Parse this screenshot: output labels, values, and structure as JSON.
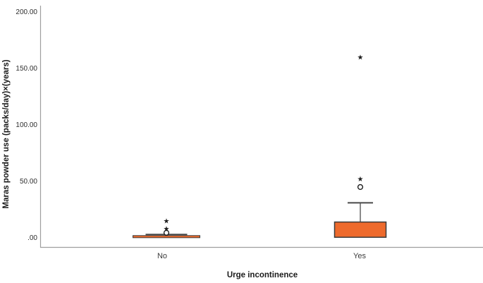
{
  "chart_data": {
    "type": "boxplot",
    "title": "",
    "xlabel": "Urge incontinence",
    "ylabel": "Maras powder use (packs/day)×(years)",
    "ylim": [
      0,
      210
    ],
    "grid": false,
    "legend": "none",
    "ytick_values": [
      0,
      50,
      100,
      150,
      200
    ],
    "ytick_labels": [
      ".00",
      "50.00",
      "100.00",
      "150.00",
      "200.00"
    ],
    "categories": [
      "No",
      "Yes"
    ],
    "series": [
      {
        "category": "No",
        "q1": 0.5,
        "median": 1,
        "q3": 2,
        "whisker_low": 0,
        "whisker_high": 3,
        "outliers_mild_circle": [
          4.5
        ],
        "outliers_extreme_star": [
          8,
          15
        ]
      },
      {
        "category": "Yes",
        "q1": 0.5,
        "median": 1,
        "q3": 14,
        "whisker_low": 0,
        "whisker_high": 31,
        "outliers_mild_circle": [
          45
        ],
        "outliers_extreme_star": [
          52,
          160
        ]
      }
    ],
    "colors": {
      "box_fill": "#EE6A2C",
      "box_border": "#3b3b3b",
      "whisker": "#4a4a4a",
      "axis_line": "#9e9e9e",
      "marker": "#1f1f1f",
      "text": "#2e2e2e"
    }
  }
}
